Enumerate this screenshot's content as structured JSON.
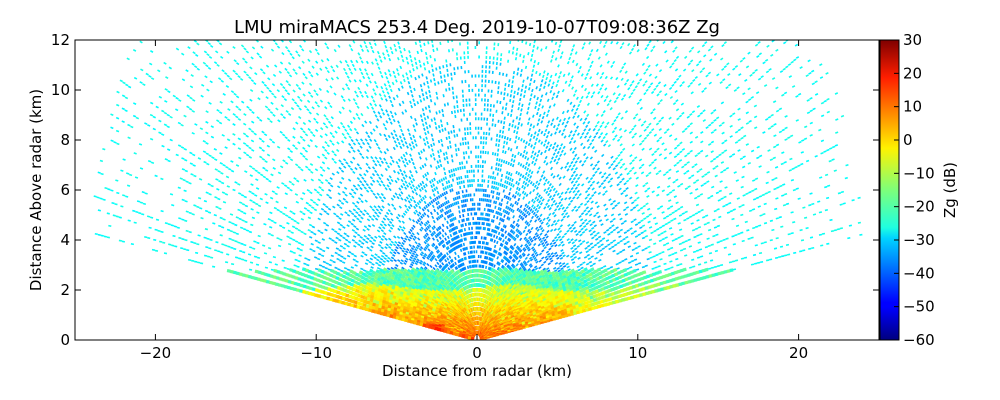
{
  "chart_data": {
    "type": "heatmap",
    "title": "LMU miraMACS 253.4 Deg. 2019-10-07T09:08:36Z  Zg",
    "xlabel": "Distance from radar (km)",
    "ylabel": "Distance Above radar  (km)",
    "xlim": [
      -25,
      25
    ],
    "ylim": [
      0,
      12
    ],
    "xticks": [
      -20,
      -10,
      0,
      10,
      20
    ],
    "xtick_labels": [
      "−20",
      "−10",
      "0",
      "10",
      "20"
    ],
    "yticks": [
      0,
      2,
      4,
      6,
      8,
      10,
      12
    ],
    "ytick_labels": [
      "0",
      "2",
      "4",
      "6",
      "8",
      "10",
      "12"
    ],
    "colorbar": {
      "label": "Zg (dB)",
      "range": [
        -60,
        30
      ],
      "ticks": [
        30,
        20,
        10,
        0,
        -10,
        -20,
        -30,
        -40,
        -50,
        -60
      ],
      "tick_labels": [
        "30",
        "20",
        "10",
        "0",
        "−10",
        "−20",
        "−30",
        "−40",
        "−50",
        "−60"
      ],
      "colormap": "jet"
    },
    "scan": {
      "azimuth_deg": 253.4,
      "time": "2019-10-07T09:08:36Z",
      "variable": "Zg",
      "max_range_km": 24.5,
      "elevation_limits_deg": [
        10,
        170
      ],
      "layers": [
        {
          "name": "noise_far",
          "height_range_km": [
            0,
            12
          ],
          "zg_range_db": [
            -27,
            -24
          ]
        },
        {
          "name": "noise_inner",
          "height_range_km": [
            2.8,
            10.5
          ],
          "zg_range_db": [
            -32,
            -29
          ]
        },
        {
          "name": "noise_core",
          "height_range_km": [
            2.8,
            6
          ],
          "zg_range_db": [
            -38,
            -33
          ]
        },
        {
          "name": "cloud_top",
          "height_range_km": [
            2.1,
            2.8
          ],
          "zg_range_db": [
            -24,
            -14
          ]
        },
        {
          "name": "boundary_layer",
          "height_range_km": [
            0,
            2.1
          ],
          "zg_range_db": [
            -8,
            12
          ]
        }
      ]
    }
  }
}
